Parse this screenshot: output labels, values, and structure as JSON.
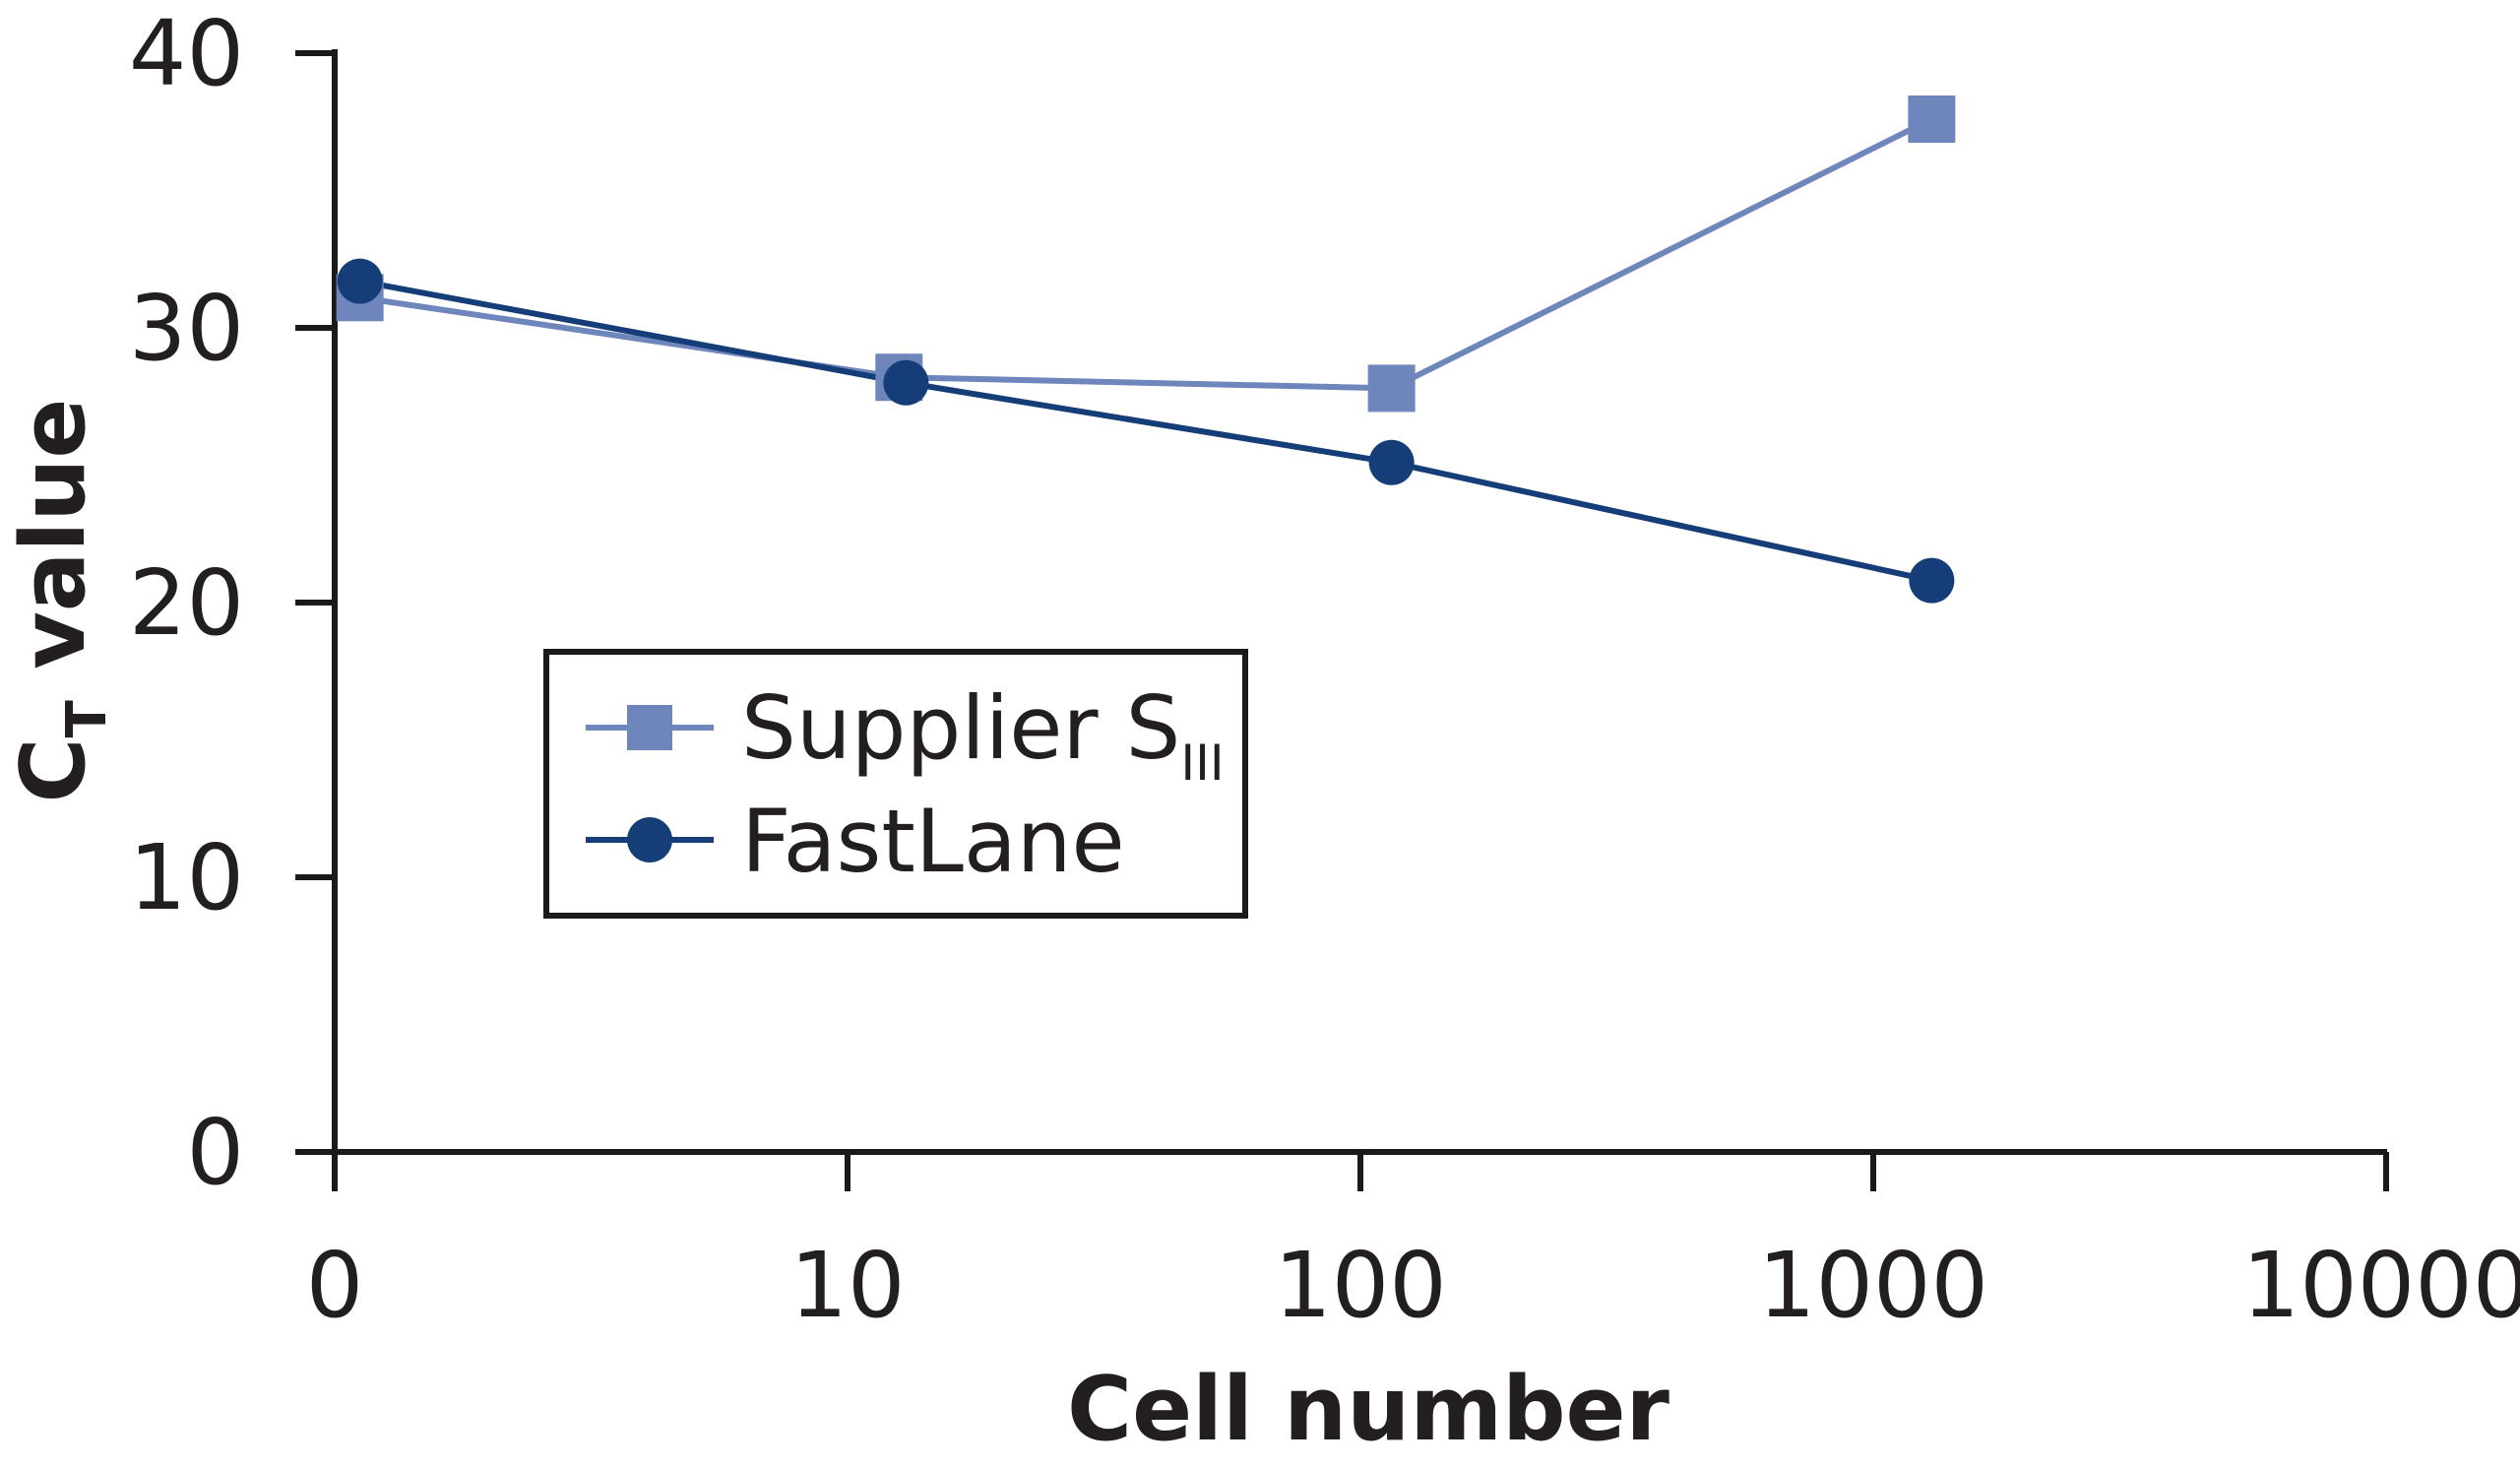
{
  "chart_data": {
    "type": "line",
    "xlabel": "Cell number",
    "ylabel_main": "C",
    "ylabel_sub": "T",
    "ylabel_rest": " value",
    "x_scale": "log",
    "x_tick_values": [
      1,
      10,
      100,
      1000,
      10000
    ],
    "x_tick_labels": [
      "0",
      "10",
      "100",
      "1000",
      "10000"
    ],
    "y_tick_values": [
      0,
      10,
      20,
      30,
      40
    ],
    "y_tick_labels": [
      "0",
      "10",
      "20",
      "30",
      "40"
    ],
    "ylim": [
      0,
      40
    ],
    "grid": false,
    "legend_placement": "center-left",
    "series": [
      {
        "name": "Supplier S",
        "name_sub": "III",
        "marker": "square",
        "color": "#6f86bd",
        "x": [
          1.12,
          12.6,
          115,
          1300
        ],
        "y": [
          31.1,
          28.2,
          27.8,
          37.6
        ]
      },
      {
        "name": "FastLane",
        "marker": "circle",
        "color": "#153e78",
        "x": [
          1.12,
          13,
          115,
          1300
        ],
        "y": [
          31.7,
          28.0,
          25.1,
          20.8
        ]
      }
    ]
  }
}
